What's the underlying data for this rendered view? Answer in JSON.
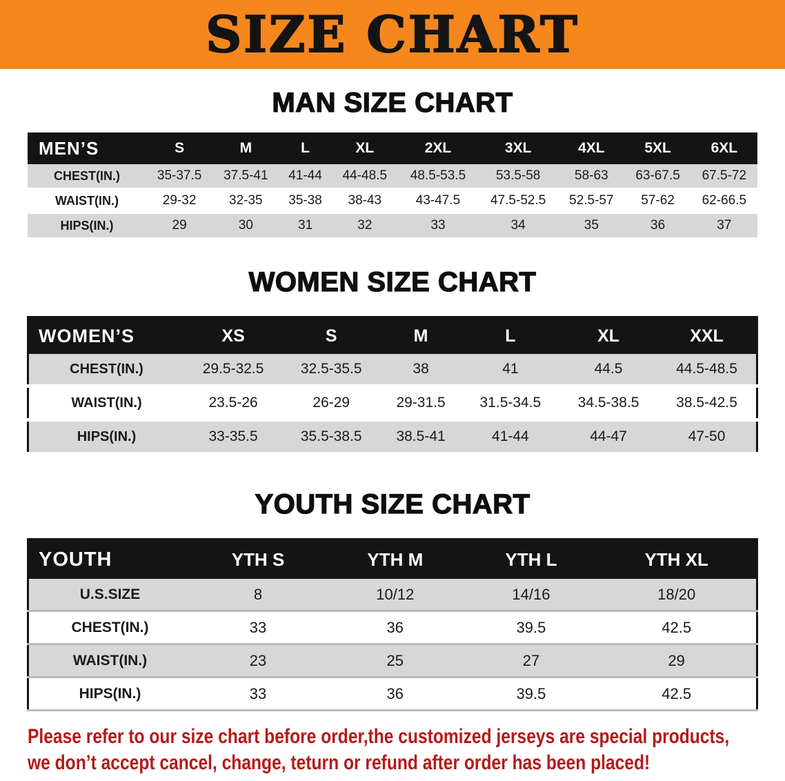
{
  "banner": {
    "title": "SIZE CHART"
  },
  "colors": {
    "accent_orange": "#F6871D",
    "header_black": "#141414",
    "row_gray": "#D7D7D7",
    "footer_red": "#B51A1A"
  },
  "sections": [
    {
      "id": "men",
      "heading": "MAN SIZE CHART",
      "table": {
        "header": [
          "MEN’S",
          "S",
          "M",
          "L",
          "XL",
          "2XL",
          "3XL",
          "4XL",
          "5XL",
          "6XL"
        ],
        "rows": [
          [
            "CHEST(IN.)",
            "35-37.5",
            "37.5-41",
            "41-44",
            "44-48.5",
            "48.5-53.5",
            "53.5-58",
            "58-63",
            "63-67.5",
            "67.5-72"
          ],
          [
            "WAIST(IN.)",
            "29-32",
            "32-35",
            "35-38",
            "38-43",
            "43-47.5",
            "47.5-52.5",
            "52.5-57",
            "57-62",
            "62-66.5"
          ],
          [
            "HIPS(IN.)",
            "29",
            "30",
            "31",
            "32",
            "33",
            "34",
            "35",
            "36",
            "37"
          ]
        ]
      }
    },
    {
      "id": "women",
      "heading": "WOMEN SIZE CHART",
      "table": {
        "header": [
          "WOMEN’S",
          "XS",
          "S",
          "M",
          "L",
          "XL",
          "XXL"
        ],
        "rows": [
          [
            "CHEST(IN.)",
            "29.5-32.5",
            "32.5-35.5",
            "38",
            "41",
            "44.5",
            "44.5-48.5"
          ],
          [
            "WAIST(IN.)",
            "23.5-26",
            "26-29",
            "29-31.5",
            "31.5-34.5",
            "34.5-38.5",
            "38.5-42.5"
          ],
          [
            "HIPS(IN.)",
            "33-35.5",
            "35.5-38.5",
            "38.5-41",
            "41-44",
            "44-47",
            "47-50"
          ]
        ]
      }
    },
    {
      "id": "youth",
      "heading": "YOUTH SIZE CHART",
      "table": {
        "header": [
          "YOUTH",
          "YTH S",
          "YTH M",
          "YTH L",
          "YTH XL"
        ],
        "rows": [
          [
            "U.S.SIZE",
            "8",
            "10/12",
            "14/16",
            "18/20"
          ],
          [
            "CHEST(IN.)",
            "33",
            "36",
            "39.5",
            "42.5"
          ],
          [
            "WAIST(IN.)",
            "23",
            "25",
            "27",
            "29"
          ],
          [
            "HIPS(IN.)",
            "33",
            "36",
            "39.5",
            "42.5"
          ]
        ]
      }
    }
  ],
  "footer": {
    "lines": [
      "Please refer to our size chart before order,the customized jerseys are special products,",
      "we don’t accept cancel, change, teturn or refund after order has been placed!"
    ]
  }
}
